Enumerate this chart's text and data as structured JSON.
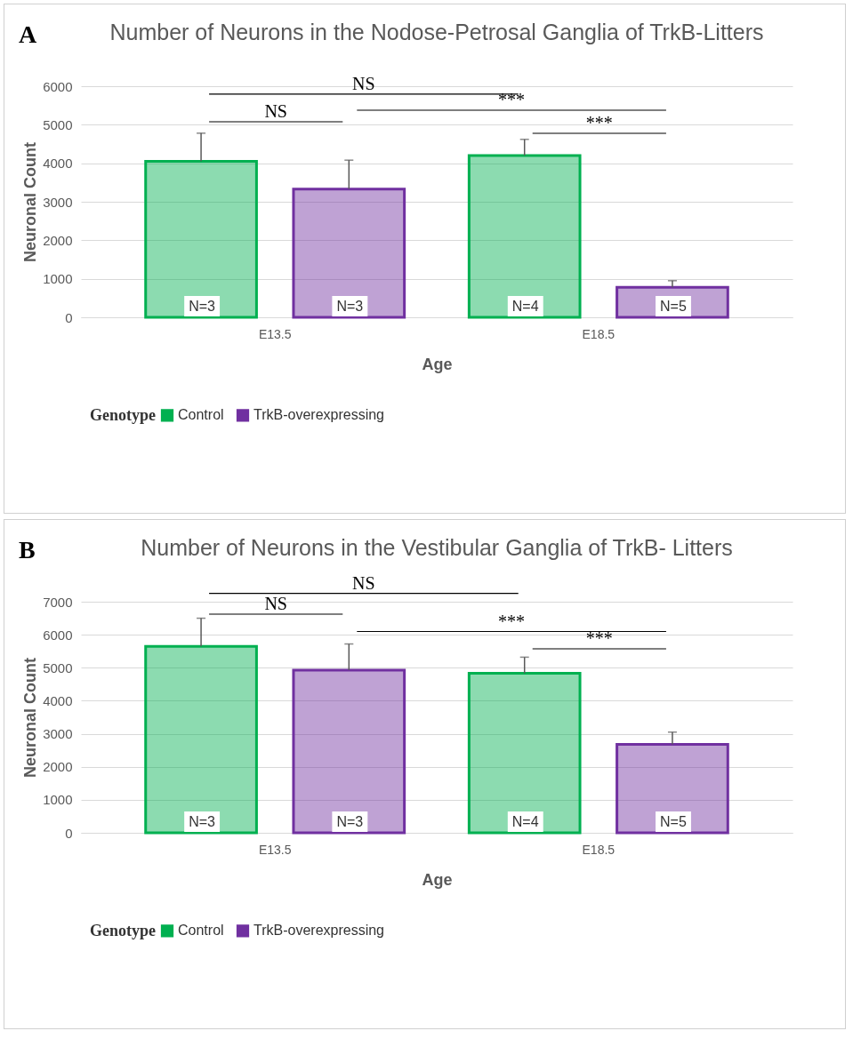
{
  "chart_data": [
    {
      "type": "bar",
      "title": "Number of Neurons in the Nodose-Petrosal Ganglia of TrkB-Litters",
      "xlabel": "Age",
      "ylabel": "Neuronal Count",
      "legend_title": "Genotype",
      "legend": "bottom",
      "grid": "y",
      "categories": [
        "E13.5",
        "E18.5"
      ],
      "ylim": [
        0,
        6000
      ],
      "yticks": [
        0,
        1000,
        2000,
        3000,
        4000,
        5000,
        6000
      ],
      "series": [
        {
          "name": "Control",
          "color": "#00b050",
          "values": [
            4050,
            4200
          ],
          "errors": [
            [
              4050,
              4780
            ],
            [
              4200,
              4620
            ]
          ]
        },
        {
          "name": "TrkB-overexpressing",
          "color": "#7030a0",
          "values": [
            3330,
            780
          ],
          "errors": [
            [
              3330,
              4080
            ],
            [
              780,
              950
            ]
          ]
        }
      ],
      "annotations": [
        "A",
        "NS",
        "NS",
        "***",
        "***",
        "N=3",
        "N=4",
        "N=3",
        "N=5"
      ]
    },
    {
      "type": "bar",
      "title": "Number of Neurons in the Vestibular Ganglia of TrkB- Litters",
      "xlabel": "Age",
      "ylabel": "Neuronal Count",
      "legend_title": "Genotype",
      "legend": "bottom",
      "grid": "y",
      "categories": [
        "E13.5",
        "E18.5"
      ],
      "ylim": [
        0,
        7000
      ],
      "yticks": [
        0,
        1000,
        2000,
        3000,
        4000,
        5000,
        6000,
        7000
      ],
      "series": [
        {
          "name": "Control",
          "color": "#00b050",
          "values": [
            5650,
            4830
          ],
          "errors": [
            [
              5650,
              6500
            ],
            [
              4830,
              5320
            ]
          ]
        },
        {
          "name": "TrkB-overexpressing",
          "color": "#7030a0",
          "values": [
            4930,
            2680
          ],
          "errors": [
            [
              4930,
              5720
            ],
            [
              2680,
              3050
            ]
          ]
        }
      ],
      "annotations": [
        "B",
        "NS",
        "NS",
        "***",
        "***",
        "N=3",
        "N=4",
        "N=3",
        "N=5"
      ]
    }
  ]
}
